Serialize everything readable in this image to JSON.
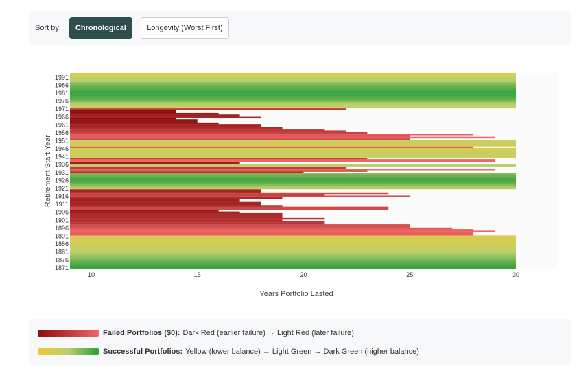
{
  "controls": {
    "sort_label": "Sort by:",
    "buttons": [
      "Chronological",
      "Longevity (Worst First)"
    ],
    "active": "Chronological"
  },
  "chart_data": {
    "type": "bar",
    "orientation": "horizontal",
    "xlabel": "Years Portfolio Lasted",
    "ylabel": "Retirement Start Year",
    "xlim": [
      9,
      30
    ],
    "x_ticks": [
      10,
      15,
      20,
      25,
      30
    ],
    "y_tick_labels": [
      "1991",
      "1986",
      "1981",
      "1976",
      "1971",
      "1966",
      "1961",
      "1956",
      "1951",
      "1946",
      "1941",
      "1936",
      "1931",
      "1926",
      "1921",
      "1916",
      "1911",
      "1906",
      "1901",
      "1896",
      "1891",
      "1886",
      "1881",
      "1876",
      "1871"
    ],
    "start_years": [
      1871,
      1872,
      1873,
      1874,
      1875,
      1876,
      1877,
      1878,
      1879,
      1880,
      1881,
      1882,
      1883,
      1884,
      1885,
      1886,
      1887,
      1888,
      1889,
      1890,
      1891,
      1892,
      1893,
      1894,
      1895,
      1896,
      1897,
      1898,
      1899,
      1900,
      1901,
      1902,
      1903,
      1904,
      1905,
      1906,
      1907,
      1908,
      1909,
      1910,
      1911,
      1912,
      1913,
      1914,
      1915,
      1916,
      1917,
      1918,
      1919,
      1920,
      1921,
      1922,
      1923,
      1924,
      1925,
      1926,
      1927,
      1928,
      1929,
      1930,
      1931,
      1932,
      1933,
      1934,
      1935,
      1936,
      1937,
      1938,
      1939,
      1940,
      1941,
      1942,
      1943,
      1944,
      1945,
      1946,
      1947,
      1948,
      1949,
      1950,
      1951,
      1952,
      1953,
      1954,
      1955,
      1956,
      1957,
      1958,
      1959,
      1960,
      1961,
      1962,
      1963,
      1964,
      1965,
      1966,
      1967,
      1968,
      1969,
      1970,
      1971,
      1972,
      1973,
      1974,
      1975,
      1976,
      1977,
      1978,
      1979,
      1980,
      1981,
      1982,
      1983,
      1984,
      1985,
      1986,
      1987,
      1988,
      1989,
      1990,
      1991,
      1992,
      1993
    ],
    "years_lasted": [
      30,
      30,
      30,
      30,
      30,
      30,
      30,
      30,
      30,
      30,
      30,
      30,
      30,
      30,
      30,
      30,
      30,
      30,
      30,
      30,
      30,
      28,
      28,
      29,
      28,
      27,
      25,
      25,
      21,
      21,
      19,
      21,
      19,
      19,
      19,
      17,
      16,
      24,
      24,
      19,
      18,
      18,
      17,
      17,
      19,
      25,
      21,
      24,
      18,
      18,
      30,
      30,
      30,
      30,
      30,
      30,
      30,
      30,
      30,
      30,
      20,
      23,
      29,
      22,
      30,
      30,
      17,
      29,
      29,
      23,
      30,
      30,
      30,
      30,
      30,
      30,
      28,
      30,
      30,
      30,
      30,
      25,
      29,
      25,
      28,
      23,
      22,
      21,
      19,
      18,
      18,
      16,
      15,
      15,
      14,
      18,
      17,
      16,
      14,
      14,
      22,
      30,
      30,
      30,
      30,
      30,
      30,
      30,
      30,
      30,
      30,
      30,
      30,
      30,
      30,
      30,
      30,
      30,
      30,
      30,
      30,
      30,
      30
    ],
    "status": [
      "success",
      "success",
      "success",
      "success",
      "success",
      "success",
      "success",
      "success",
      "success",
      "success",
      "success",
      "success",
      "success",
      "success",
      "success",
      "success",
      "success",
      "success",
      "success",
      "success",
      "success",
      "failed",
      "failed",
      "failed",
      "failed",
      "failed",
      "failed",
      "failed",
      "failed",
      "failed",
      "failed",
      "failed",
      "failed",
      "failed",
      "failed",
      "failed",
      "failed",
      "failed",
      "failed",
      "failed",
      "failed",
      "failed",
      "failed",
      "failed",
      "failed",
      "failed",
      "failed",
      "failed",
      "failed",
      "failed",
      "success",
      "success",
      "success",
      "success",
      "success",
      "success",
      "success",
      "success",
      "success",
      "success",
      "failed",
      "failed",
      "failed",
      "failed",
      "success",
      "success",
      "failed",
      "failed",
      "failed",
      "failed",
      "success",
      "success",
      "success",
      "success",
      "success",
      "success",
      "failed",
      "success",
      "success",
      "success",
      "success",
      "failed",
      "failed",
      "failed",
      "failed",
      "failed",
      "failed",
      "failed",
      "failed",
      "failed",
      "failed",
      "failed",
      "failed",
      "failed",
      "failed",
      "failed",
      "failed",
      "failed",
      "failed",
      "failed",
      "failed",
      "success",
      "success",
      "success",
      "success",
      "success",
      "success",
      "success",
      "success",
      "success",
      "success",
      "success",
      "success",
      "success",
      "success",
      "success",
      "success",
      "success",
      "success",
      "success",
      "success",
      "success",
      "success"
    ],
    "success_balance_level": [
      0.95,
      0.95,
      0.9,
      0.85,
      0.8,
      0.75,
      0.7,
      0.65,
      0.6,
      0.55,
      0.5,
      0.45,
      0.4,
      0.35,
      0.3,
      0.28,
      0.26,
      0.24,
      0.22,
      0.2,
      0.2,
      0,
      0,
      0,
      0,
      0,
      0,
      0,
      0,
      0,
      0,
      0,
      0,
      0,
      0,
      0,
      0,
      0,
      0,
      0,
      0,
      0,
      0,
      0,
      0,
      0,
      0,
      0,
      0,
      0,
      0.4,
      0.55,
      0.7,
      0.8,
      0.85,
      0.9,
      0.9,
      0.85,
      0.8,
      0.7,
      0,
      0,
      0,
      0,
      0.4,
      0.5,
      0,
      0,
      0,
      0,
      0.3,
      0.35,
      0.35,
      0.3,
      0.3,
      0.3,
      0,
      0.25,
      0.3,
      0.35,
      0.35,
      0,
      0,
      0,
      0,
      0,
      0,
      0,
      0,
      0,
      0,
      0,
      0,
      0,
      0,
      0,
      0,
      0,
      0,
      0,
      0,
      0.3,
      0.4,
      0.5,
      0.6,
      0.7,
      0.8,
      0.85,
      0.9,
      0.95,
      0.95,
      0.95,
      0.9,
      0.85,
      0.8,
      0.75,
      0.7,
      0.6,
      0.5,
      0.45,
      0.4,
      0.3,
      0.2
    ],
    "colors": {
      "failed_dark": "#8b0d0d",
      "failed_light": "#f06565",
      "success_low": "#f0c93a",
      "success_mid": "#b7cf6c",
      "success_high": "#2f9e3b",
      "plot_bg": "#fbfbfb"
    }
  },
  "legend": {
    "failed_title": "Failed Portfolios ($0):",
    "failed_desc": "Dark Red (earlier failure) → Light Red (later failure)",
    "success_title": "Successful Portfolios:",
    "success_desc": "Yellow (lower balance) → Light Green → Dark Green (higher balance)"
  }
}
